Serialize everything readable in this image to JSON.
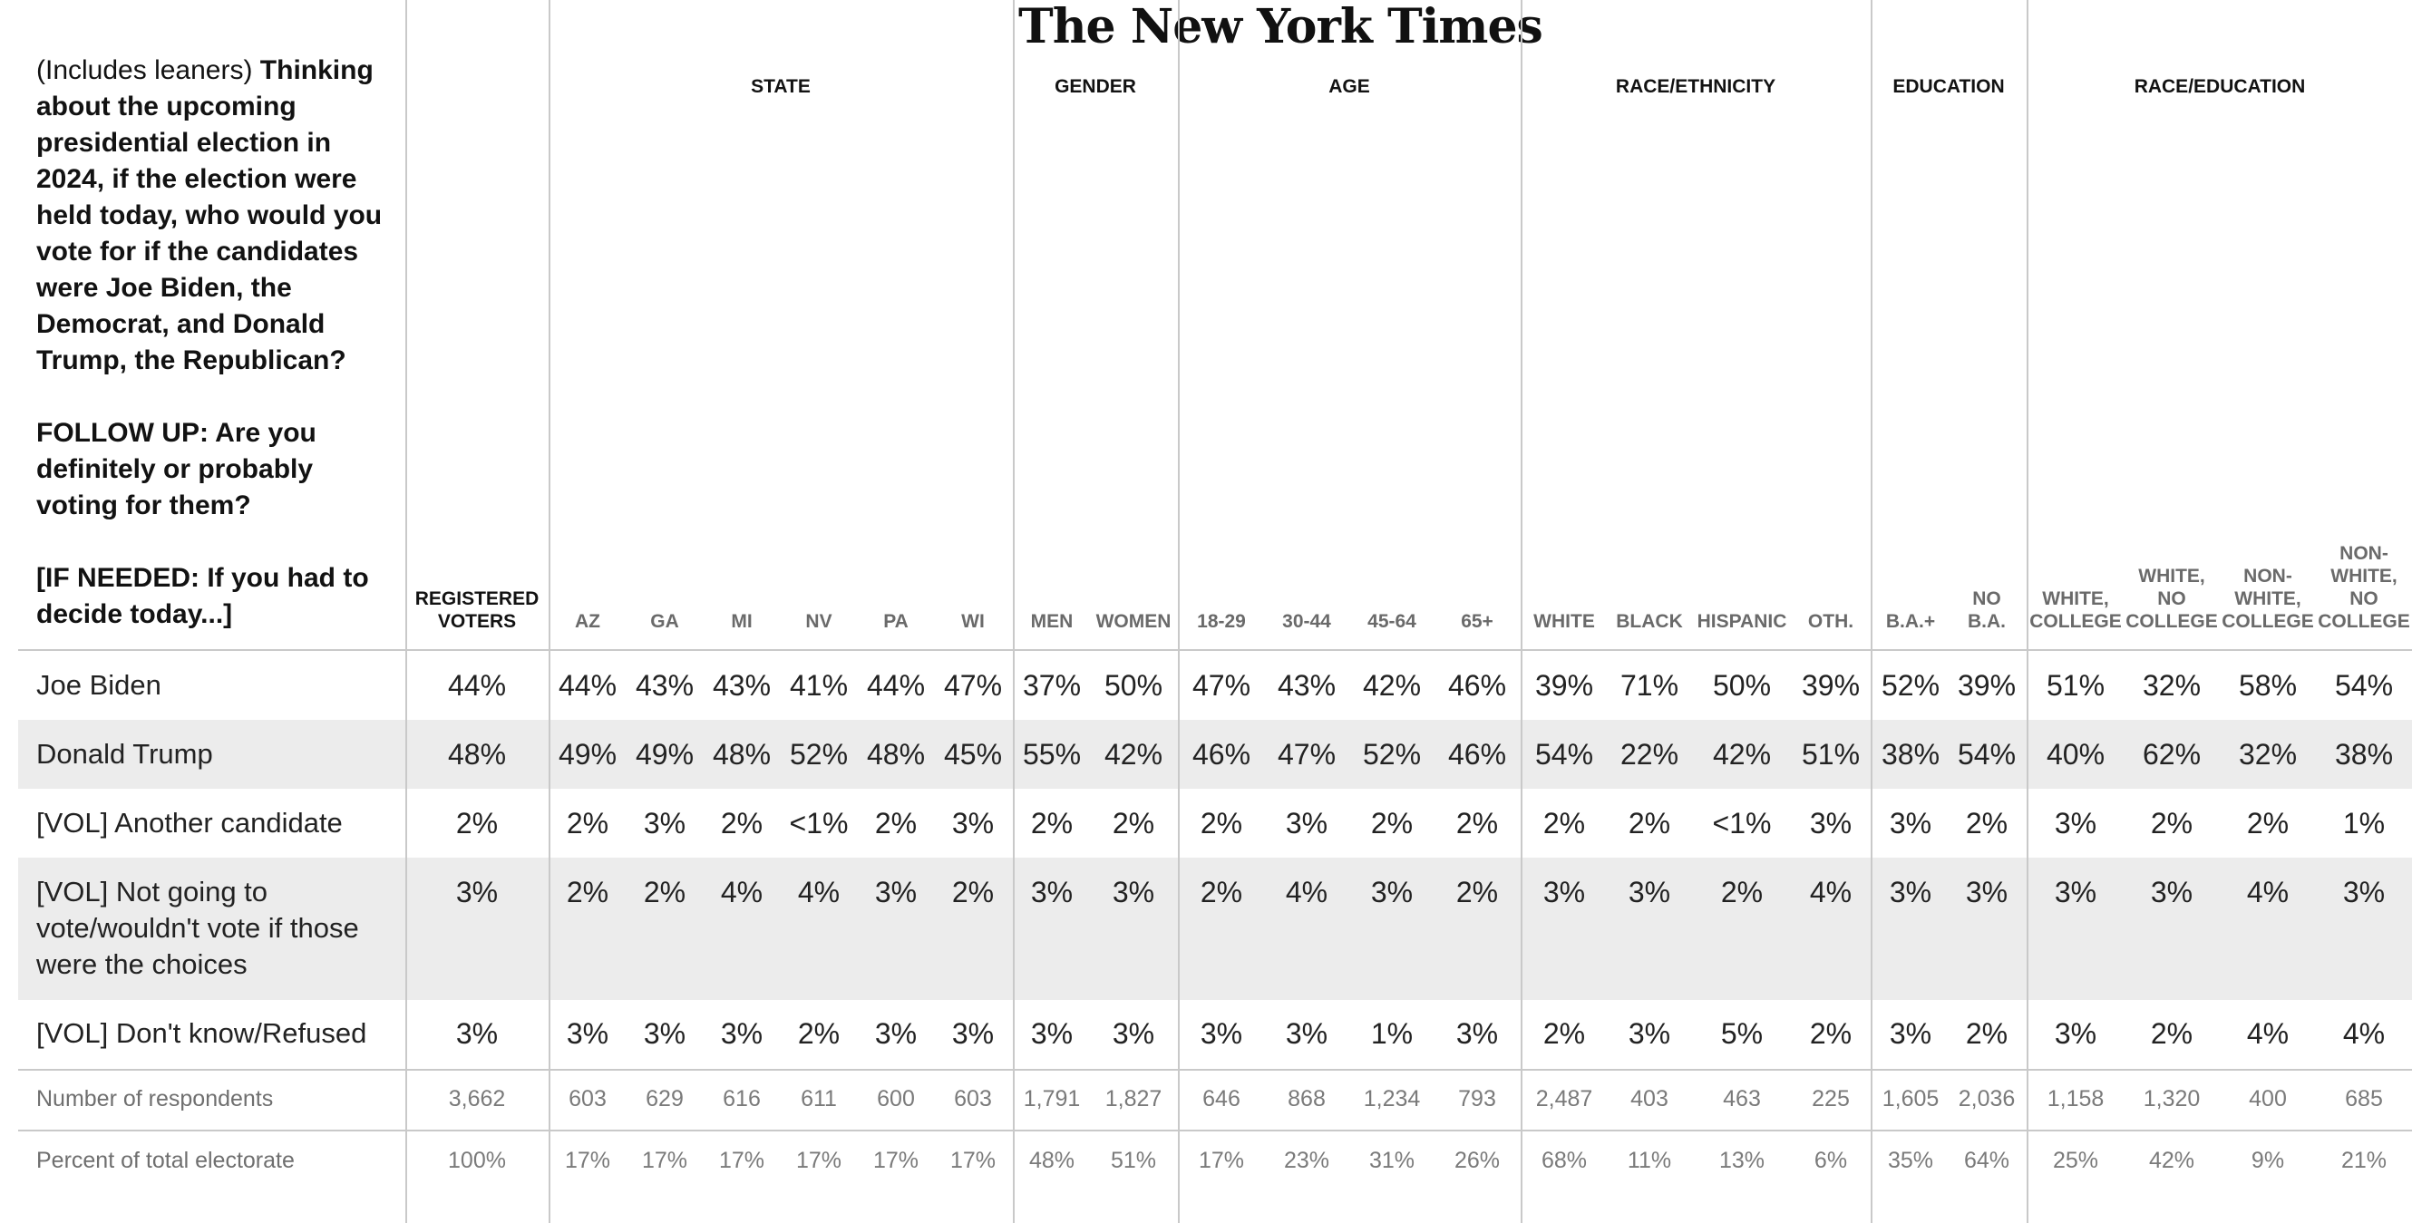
{
  "logo": "The New York Times",
  "question": {
    "intro": "(Includes leaners)",
    "text": "Thinking about the upcoming presidential election in 2024, if the election were held today, who would you vote for if the candidates were Joe Biden, the Democrat, and Donald Trump, the Republican?",
    "followup": "FOLLOW UP: Are you definitely or probably voting for them?",
    "if_needed": "[IF NEEDED: If you had to decide today...]"
  },
  "groups": [
    "STATE",
    "GENDER",
    "AGE",
    "RACE/ETHNICITY",
    "EDUCATION",
    "RACE/EDUCATION"
  ],
  "columns": [
    "REGISTERED\nVOTERS",
    "AZ",
    "GA",
    "MI",
    "NV",
    "PA",
    "WI",
    "MEN",
    "WOMEN",
    "18-29",
    "30-44",
    "45-64",
    "65+",
    "WHITE",
    "BLACK",
    "HISPANIC",
    "OTH.",
    "B.A.+",
    "NO\nB.A.",
    "WHITE,\nCOLLEGE",
    "WHITE,\nNO\nCOLLEGE",
    "NON-\nWHITE,\nCOLLEGE",
    "NON-\nWHITE,\nNO\nCOLLEGE"
  ],
  "rows": [
    {
      "label": "Joe Biden",
      "values": [
        "44%",
        "44%",
        "43%",
        "43%",
        "41%",
        "44%",
        "47%",
        "37%",
        "50%",
        "47%",
        "43%",
        "42%",
        "46%",
        "39%",
        "71%",
        "50%",
        "39%",
        "52%",
        "39%",
        "51%",
        "32%",
        "58%",
        "54%"
      ]
    },
    {
      "label": "Donald Trump",
      "values": [
        "48%",
        "49%",
        "49%",
        "48%",
        "52%",
        "48%",
        "45%",
        "55%",
        "42%",
        "46%",
        "47%",
        "52%",
        "46%",
        "54%",
        "22%",
        "42%",
        "51%",
        "38%",
        "54%",
        "40%",
        "62%",
        "32%",
        "38%"
      ]
    },
    {
      "label": "[VOL] Another candidate",
      "values": [
        "2%",
        "2%",
        "3%",
        "2%",
        "<1%",
        "2%",
        "3%",
        "2%",
        "2%",
        "2%",
        "3%",
        "2%",
        "2%",
        "2%",
        "2%",
        "<1%",
        "3%",
        "3%",
        "2%",
        "3%",
        "2%",
        "2%",
        "1%"
      ]
    },
    {
      "label": "[VOL] Not going to vote/wouldn't vote if those were the choices",
      "values": [
        "3%",
        "2%",
        "2%",
        "4%",
        "4%",
        "3%",
        "2%",
        "3%",
        "3%",
        "2%",
        "4%",
        "3%",
        "2%",
        "3%",
        "3%",
        "2%",
        "4%",
        "3%",
        "3%",
        "3%",
        "3%",
        "4%",
        "3%"
      ]
    },
    {
      "label": "[VOL] Don't know/Refused",
      "values": [
        "3%",
        "3%",
        "3%",
        "3%",
        "2%",
        "3%",
        "3%",
        "3%",
        "3%",
        "3%",
        "3%",
        "1%",
        "3%",
        "2%",
        "3%",
        "5%",
        "2%",
        "3%",
        "2%",
        "3%",
        "2%",
        "4%",
        "4%"
      ]
    }
  ],
  "footer": [
    {
      "label": "Number of respondents",
      "values": [
        "3,662",
        "603",
        "629",
        "616",
        "611",
        "600",
        "603",
        "1,791",
        "1,827",
        "646",
        "868",
        "1,234",
        "793",
        "2,487",
        "403",
        "463",
        "225",
        "1,605",
        "2,036",
        "1,158",
        "1,320",
        "400",
        "685"
      ]
    },
    {
      "label": "Percent of total electorate",
      "values": [
        "100%",
        "17%",
        "17%",
        "17%",
        "17%",
        "17%",
        "17%",
        "48%",
        "51%",
        "17%",
        "23%",
        "31%",
        "26%",
        "68%",
        "11%",
        "13%",
        "6%",
        "35%",
        "64%",
        "25%",
        "42%",
        "9%",
        "21%"
      ]
    }
  ]
}
